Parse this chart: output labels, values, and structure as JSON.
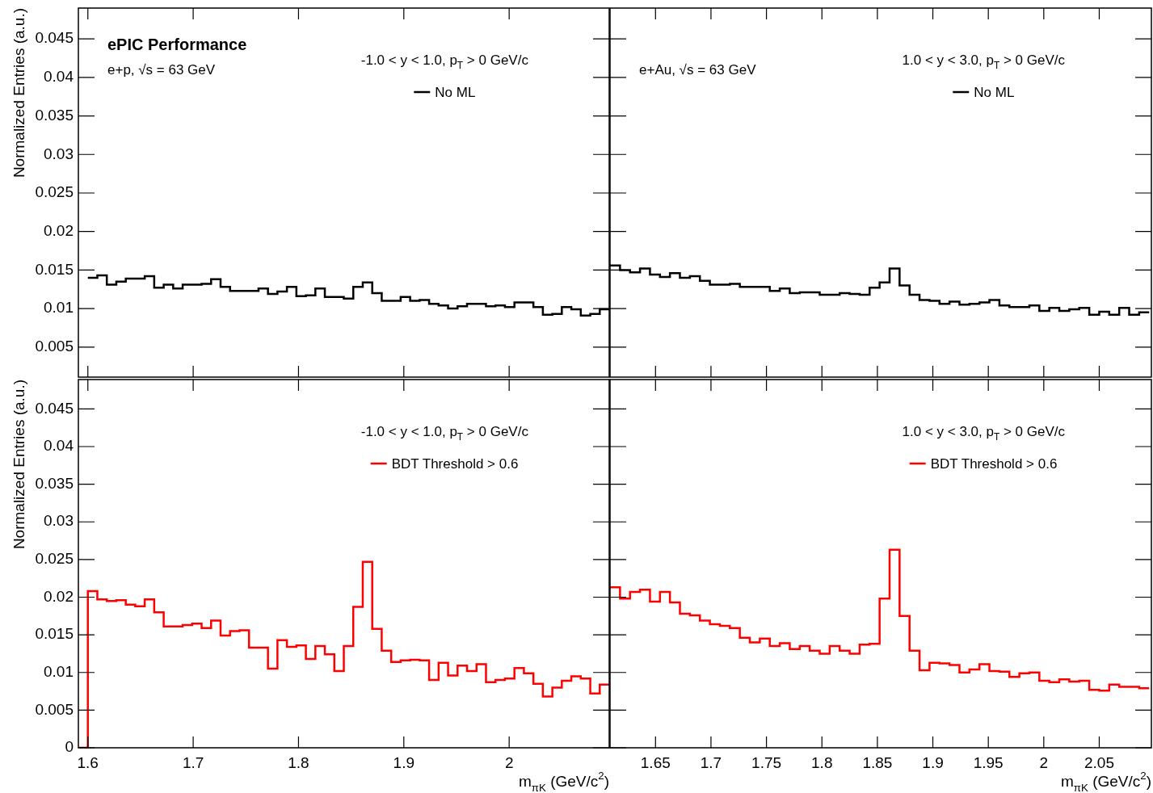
{
  "chart_data": [
    {
      "type": "histogram",
      "ylabel": "Normalized Entries (a.u.)",
      "annotations": [
        "ePIC Performance",
        "e+p, √s = 63 GeV",
        "-1.0 < y < 1.0, p$_{T}$ > 0 GeV/c"
      ],
      "legend": "top right",
      "tick_labels": "y",
      "xlim": [
        1.591,
        2.095
      ],
      "xticks": [
        1.6,
        1.7,
        1.8,
        1.9,
        2
      ],
      "ylim": [
        0.0011,
        0.049
      ],
      "yticks": [
        0.005,
        0.01,
        0.015,
        0.02,
        0.025,
        0.03,
        0.035,
        0.04,
        0.045
      ],
      "bins": [
        1.6,
        1.609,
        1.618,
        1.627,
        1.636,
        1.645,
        1.654,
        1.663,
        1.672,
        1.681,
        1.69,
        1.699,
        1.708,
        1.717,
        1.726,
        1.735,
        1.744,
        1.753,
        1.762,
        1.771,
        1.78,
        1.789,
        1.798,
        1.807,
        1.816,
        1.825,
        1.834,
        1.843,
        1.852,
        1.861,
        1.87,
        1.879,
        1.888,
        1.897,
        1.906,
        1.915,
        1.924,
        1.933,
        1.942,
        1.951,
        1.96,
        1.969,
        1.978,
        1.987,
        1.996,
        2.005,
        2.014,
        2.023,
        2.032,
        2.041,
        2.05,
        2.059,
        2.068,
        2.077,
        2.086,
        2.095
      ],
      "series": [
        {
          "name": "No ML",
          "color": "#000000",
          "values": [
            0.014,
            0.0143,
            0.0131,
            0.0135,
            0.0139,
            0.0139,
            0.0142,
            0.0127,
            0.0131,
            0.0126,
            0.0131,
            0.0131,
            0.0132,
            0.0138,
            0.0128,
            0.0123,
            0.0123,
            0.0123,
            0.0126,
            0.0119,
            0.0122,
            0.0128,
            0.0116,
            0.0117,
            0.0126,
            0.0115,
            0.0115,
            0.0113,
            0.0128,
            0.0134,
            0.012,
            0.011,
            0.011,
            0.0115,
            0.011,
            0.0111,
            0.0106,
            0.0104,
            0.01,
            0.0103,
            0.0106,
            0.0106,
            0.0103,
            0.0104,
            0.0102,
            0.0108,
            0.0108,
            0.0102,
            0.0092,
            0.0093,
            0.0102,
            0.0099,
            0.0091,
            0.0093,
            0.0099
          ]
        }
      ]
    },
    {
      "type": "histogram",
      "annotations": [
        "e+Au, √s = 63 GeV",
        "1.0 < y < 3.0, p$_{T}$ > 0 GeV/c"
      ],
      "legend": "top right",
      "tick_labels": false,
      "xlim": [
        1.609,
        2.097
      ],
      "xticks": [
        1.65,
        1.7,
        1.75,
        1.8,
        1.85,
        1.9,
        1.95,
        2,
        2.05
      ],
      "ylim": [
        0.0011,
        0.049
      ],
      "yticks": [
        0.005,
        0.01,
        0.015,
        0.02,
        0.025,
        0.03,
        0.035,
        0.04,
        0.045
      ],
      "bins": [
        1.609,
        1.618,
        1.627,
        1.636,
        1.645,
        1.654,
        1.663,
        1.672,
        1.681,
        1.69,
        1.699,
        1.708,
        1.717,
        1.726,
        1.735,
        1.744,
        1.753,
        1.762,
        1.771,
        1.78,
        1.789,
        1.798,
        1.807,
        1.816,
        1.825,
        1.834,
        1.843,
        1.852,
        1.861,
        1.87,
        1.879,
        1.888,
        1.897,
        1.906,
        1.915,
        1.924,
        1.933,
        1.942,
        1.951,
        1.96,
        1.969,
        1.978,
        1.987,
        1.996,
        2.005,
        2.014,
        2.023,
        2.032,
        2.041,
        2.05,
        2.059,
        2.068,
        2.077,
        2.086,
        2.095
      ],
      "series": [
        {
          "name": "No ML",
          "color": "#000000",
          "values": [
            0.0156,
            0.015,
            0.0147,
            0.0152,
            0.0144,
            0.0141,
            0.0146,
            0.014,
            0.0142,
            0.0136,
            0.0131,
            0.0131,
            0.0132,
            0.0128,
            0.0128,
            0.0128,
            0.0123,
            0.0126,
            0.012,
            0.0121,
            0.0121,
            0.0118,
            0.0118,
            0.012,
            0.0119,
            0.0118,
            0.0127,
            0.0134,
            0.0152,
            0.013,
            0.0118,
            0.0111,
            0.011,
            0.0106,
            0.0109,
            0.0105,
            0.0106,
            0.0108,
            0.0111,
            0.0104,
            0.0102,
            0.0102,
            0.0104,
            0.0097,
            0.0101,
            0.0097,
            0.0099,
            0.0101,
            0.0092,
            0.0096,
            0.0092,
            0.0101,
            0.0092,
            0.0095
          ]
        }
      ]
    },
    {
      "type": "histogram",
      "ylabel": "Normalized Entries (a.u.)",
      "xlabel": "m$_{πK}$ (GeV/c$^{2}$)",
      "annotations": [
        "-1.0 < y < 1.0, p$_{T}$ > 0 GeV/c"
      ],
      "legend": "top right",
      "xlim": [
        1.591,
        2.095
      ],
      "xticks": [
        1.6,
        1.7,
        1.8,
        1.9,
        2
      ],
      "ylim": [
        0,
        0.0489
      ],
      "yticks": [
        0,
        0.005,
        0.01,
        0.015,
        0.02,
        0.025,
        0.03,
        0.035,
        0.04,
        0.045
      ],
      "bins": [
        1.591,
        1.6,
        1.609,
        1.618,
        1.627,
        1.636,
        1.645,
        1.654,
        1.663,
        1.672,
        1.681,
        1.69,
        1.699,
        1.708,
        1.717,
        1.726,
        1.735,
        1.744,
        1.753,
        1.762,
        1.771,
        1.78,
        1.789,
        1.798,
        1.807,
        1.816,
        1.825,
        1.834,
        1.843,
        1.852,
        1.861,
        1.87,
        1.879,
        1.888,
        1.897,
        1.906,
        1.915,
        1.924,
        1.933,
        1.942,
        1.951,
        1.96,
        1.969,
        1.978,
        1.987,
        1.996,
        2.005,
        2.014,
        2.023,
        2.032,
        2.041,
        2.05,
        2.059,
        2.068,
        2.077,
        2.086,
        2.095
      ],
      "series": [
        {
          "name": "BDT Threshold > 0.6",
          "color": "#ff0000",
          "values": [
            0,
            0.0208,
            0.0197,
            0.0195,
            0.0196,
            0.019,
            0.0188,
            0.0197,
            0.018,
            0.0161,
            0.0161,
            0.0163,
            0.0165,
            0.0159,
            0.0169,
            0.0149,
            0.0155,
            0.0156,
            0.0133,
            0.0133,
            0.0105,
            0.0143,
            0.0134,
            0.0136,
            0.0118,
            0.0135,
            0.0124,
            0.0102,
            0.0135,
            0.0187,
            0.0247,
            0.0158,
            0.0129,
            0.0114,
            0.0116,
            0.0117,
            0.0116,
            0.009,
            0.0113,
            0.0096,
            0.0109,
            0.0102,
            0.0111,
            0.0087,
            0.009,
            0.0092,
            0.0106,
            0.0099,
            0.0085,
            0.0068,
            0.008,
            0.0089,
            0.0095,
            0.0092,
            0.0072,
            0.0084
          ]
        }
      ]
    },
    {
      "type": "histogram",
      "xlabel": "m$_{πK}$ (GeV/c$^{2}$)",
      "annotations": [
        "1.0 < y < 3.0, p$_{T}$ > 0 GeV/c"
      ],
      "legend": "top right",
      "tick_labels": "x",
      "xlim": [
        1.609,
        2.097
      ],
      "xticks": [
        1.65,
        1.7,
        1.75,
        1.8,
        1.85,
        1.9,
        1.95,
        2,
        2.05
      ],
      "ylim": [
        0,
        0.0489
      ],
      "yticks": [
        0,
        0.005,
        0.01,
        0.015,
        0.02,
        0.025,
        0.03,
        0.035,
        0.04,
        0.045
      ],
      "bins": [
        1.609,
        1.618,
        1.627,
        1.636,
        1.645,
        1.654,
        1.663,
        1.672,
        1.681,
        1.69,
        1.699,
        1.708,
        1.717,
        1.726,
        1.735,
        1.744,
        1.753,
        1.762,
        1.771,
        1.78,
        1.789,
        1.798,
        1.807,
        1.816,
        1.825,
        1.834,
        1.843,
        1.852,
        1.861,
        1.87,
        1.879,
        1.888,
        1.897,
        1.906,
        1.915,
        1.924,
        1.933,
        1.942,
        1.951,
        1.96,
        1.969,
        1.978,
        1.987,
        1.996,
        2.005,
        2.014,
        2.023,
        2.032,
        2.041,
        2.05,
        2.059,
        2.068,
        2.077,
        2.086,
        2.095
      ],
      "series": [
        {
          "name": "BDT Threshold > 0.6",
          "color": "#ff0000",
          "values": [
            0.0213,
            0.0198,
            0.0207,
            0.021,
            0.0194,
            0.0207,
            0.0193,
            0.0178,
            0.0176,
            0.0169,
            0.0164,
            0.0162,
            0.0159,
            0.0146,
            0.014,
            0.0145,
            0.0135,
            0.0139,
            0.0131,
            0.0135,
            0.0129,
            0.0125,
            0.0135,
            0.0129,
            0.0125,
            0.0137,
            0.0138,
            0.0198,
            0.0263,
            0.0175,
            0.0129,
            0.0103,
            0.0113,
            0.0112,
            0.011,
            0.01,
            0.0104,
            0.0111,
            0.0102,
            0.0101,
            0.0094,
            0.0099,
            0.01,
            0.0089,
            0.0087,
            0.0091,
            0.0088,
            0.0089,
            0.0077,
            0.0076,
            0.0084,
            0.0081,
            0.0081,
            0.0079
          ]
        }
      ]
    }
  ]
}
